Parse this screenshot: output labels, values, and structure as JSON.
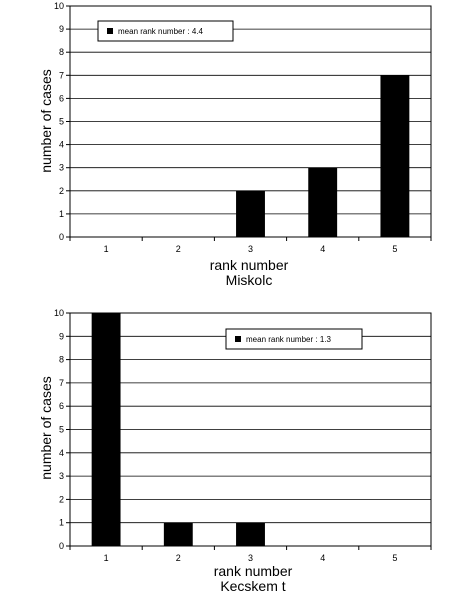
{
  "chart_data": [
    {
      "type": "bar",
      "title": "Miskolc",
      "xlabel": "rank number",
      "ylabel": "number of cases",
      "categories": [
        "1",
        "2",
        "3",
        "4",
        "5"
      ],
      "values": [
        0,
        0,
        2,
        3,
        7
      ],
      "ylim": [
        0,
        10
      ],
      "yticks": [
        "0",
        "1",
        "2",
        "3",
        "4",
        "5",
        "6",
        "7",
        "8",
        "9",
        "10"
      ],
      "legend": {
        "label": "mean rank number : 4.4",
        "position": "top-left"
      },
      "grid": "horizontal",
      "bar_color": "#000000"
    },
    {
      "type": "bar",
      "title": "Kecskem  t",
      "xlabel": "rank number",
      "ylabel": "number of cases",
      "categories": [
        "1",
        "2",
        "3",
        "4",
        "5"
      ],
      "values": [
        10,
        1,
        1,
        0,
        0
      ],
      "ylim": [
        0,
        10
      ],
      "yticks": [
        "0",
        "1",
        "2",
        "3",
        "4",
        "5",
        "6",
        "7",
        "8",
        "9",
        "10"
      ],
      "legend": {
        "label": "mean rank number : 1.3",
        "position": "top-right"
      },
      "grid": "horizontal",
      "bar_color": "#000000"
    }
  ]
}
